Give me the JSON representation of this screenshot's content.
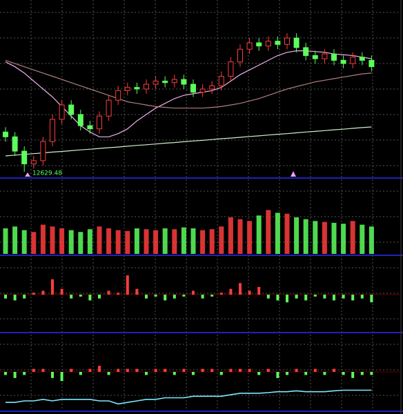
{
  "chart_data": {
    "type": "candlestick",
    "up_color": "#ff3c3c",
    "down_color": "#5cff5c",
    "ylim": [
      12600,
      13700
    ],
    "open": [
      12880,
      12850,
      12760,
      12680,
      12700,
      12820,
      12960,
      13050,
      12990,
      12920,
      12900,
      12980,
      13080,
      13140,
      13160,
      13150,
      13180,
      13200,
      13190,
      13210,
      13180,
      13130,
      13150,
      13170,
      13230,
      13320,
      13400,
      13440,
      13420,
      13450,
      13430,
      13470,
      13410,
      13360,
      13340,
      13370,
      13330,
      13310,
      13350,
      13330
    ],
    "high": [
      12910,
      12880,
      12790,
      12730,
      12850,
      12990,
      13080,
      13080,
      13020,
      12950,
      13010,
      13110,
      13170,
      13190,
      13190,
      13210,
      13230,
      13230,
      13240,
      13240,
      13210,
      13180,
      13200,
      13260,
      13350,
      13430,
      13470,
      13470,
      13480,
      13480,
      13500,
      13500,
      13440,
      13390,
      13400,
      13400,
      13360,
      13380,
      13380,
      13360
    ],
    "low": [
      12820,
      12730,
      12629.48,
      12650,
      12670,
      12790,
      12930,
      12960,
      12890,
      12870,
      12870,
      12950,
      13050,
      13110,
      13120,
      13120,
      13150,
      13160,
      13160,
      13150,
      13100,
      13100,
      13120,
      13140,
      13200,
      13290,
      13370,
      13390,
      13390,
      13400,
      13400,
      13380,
      13330,
      13310,
      13310,
      13300,
      13280,
      13280,
      13300,
      13260
    ],
    "close": [
      12850,
      12760,
      12680,
      12700,
      12820,
      12960,
      13050,
      12990,
      12920,
      12900,
      12980,
      13080,
      13140,
      13160,
      13150,
      13180,
      13200,
      13190,
      13210,
      13180,
      13130,
      13150,
      13170,
      13230,
      13320,
      13400,
      13440,
      13420,
      13450,
      13430,
      13470,
      13410,
      13360,
      13340,
      13370,
      13330,
      13310,
      13350,
      13330,
      13290
    ],
    "ma": [
      {
        "color": "#f0b0ec",
        "values": [
          13320,
          13290,
          13250,
          13200,
          13150,
          13100,
          13040,
          12980,
          12920,
          12880,
          12850,
          12850,
          12870,
          12900,
          12950,
          12990,
          13030,
          13060,
          13090,
          13110,
          13120,
          13130,
          13140,
          13160,
          13200,
          13240,
          13270,
          13300,
          13330,
          13360,
          13380,
          13390,
          13390,
          13385,
          13380,
          13370,
          13365,
          13360,
          13350,
          13340
        ]
      },
      {
        "color": "#b08080",
        "values": [
          13330,
          13310,
          13290,
          13270,
          13250,
          13230,
          13210,
          13190,
          13170,
          13150,
          13130,
          13110,
          13090,
          13070,
          13060,
          13050,
          13040,
          13035,
          13030,
          13030,
          13030,
          13030,
          13035,
          13040,
          13050,
          13060,
          13075,
          13090,
          13110,
          13130,
          13150,
          13165,
          13180,
          13195,
          13205,
          13215,
          13225,
          13235,
          13245,
          13250
        ]
      },
      {
        "color": "#d0f0d0",
        "values": [
          12730,
          12735,
          12740,
          12744,
          12749,
          12754,
          12758,
          12763,
          12768,
          12772,
          12777,
          12782,
          12786,
          12791,
          12796,
          12800,
          12805,
          12810,
          12814,
          12819,
          12824,
          12828,
          12833,
          12838,
          12842,
          12847,
          12852,
          12856,
          12861,
          12866,
          12870,
          12875,
          12880,
          12884,
          12889,
          12894,
          12898,
          12903,
          12908,
          12912
        ]
      }
    ],
    "volume": {
      "ylim": [
        0,
        80
      ],
      "values": [
        28,
        30,
        26,
        24,
        32,
        30,
        28,
        26,
        24,
        27,
        30,
        28,
        26,
        25,
        28,
        27,
        26,
        28,
        27,
        29,
        28,
        26,
        27,
        30,
        40,
        38,
        36,
        42,
        48,
        45,
        44,
        40,
        38,
        36,
        35,
        34,
        33,
        36,
        32,
        30
      ]
    },
    "indicators": [
      {
        "ylim": [
          -19,
          19
        ],
        "values": [
          -2,
          -3,
          -2,
          1,
          2,
          8,
          3,
          -2,
          -1,
          -3,
          -2,
          2,
          1,
          10,
          3,
          -2,
          -1,
          -3,
          -2,
          -1,
          2,
          -2,
          -1,
          1,
          3,
          6,
          2,
          4,
          -2,
          -3,
          -4,
          -2,
          -3,
          -1,
          -2,
          -3,
          -2,
          -3,
          -2,
          -4
        ]
      },
      {
        "ylim": [
          -12,
          12
        ],
        "values": [
          -1,
          -2,
          -1,
          1,
          1,
          -2,
          -3,
          1,
          -1,
          1,
          2,
          -1,
          1,
          1,
          1,
          -1,
          1,
          1,
          -1,
          1,
          -1,
          1,
          1,
          -1,
          1,
          1,
          1,
          -1,
          1,
          -2,
          -1,
          1,
          -1,
          1,
          -1,
          1,
          -1,
          -2,
          -1,
          -1
        ],
        "line": {
          "color": "#7fe8ff",
          "values": [
            -10,
            -10,
            -9.5,
            -9.5,
            -9,
            -9.5,
            -9,
            -9,
            -9,
            -9,
            -9.5,
            -9.5,
            -10.5,
            -10,
            -9.5,
            -9,
            -9,
            -8.5,
            -8.5,
            -8.5,
            -8,
            -8,
            -8,
            -8,
            -7.5,
            -7,
            -7,
            -7,
            -6.8,
            -6.5,
            -6.5,
            -6.2,
            -6.5,
            -6.5,
            -6.5,
            -6.2,
            -6,
            -6,
            -6,
            -6
          ]
        }
      }
    ]
  }
}
